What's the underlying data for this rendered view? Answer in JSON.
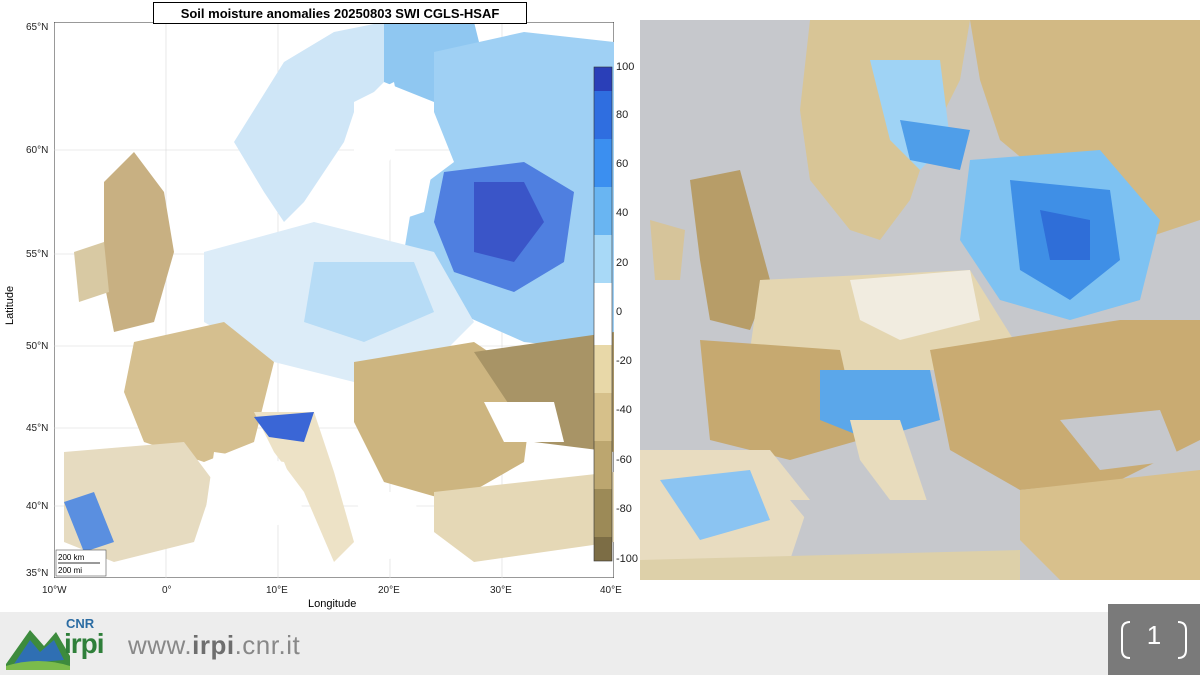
{
  "left_map": {
    "title": "Soil moisture anomalies 20250803 SWI CGLS-HSAF",
    "ylabel": "Latitude",
    "xlabel": "Longitude",
    "lat_ticks": [
      "65°N",
      "60°N",
      "55°N",
      "50°N",
      "45°N",
      "40°N",
      "35°N"
    ],
    "lon_ticks": [
      "10°W",
      "0°",
      "10°E",
      "20°E",
      "30°E",
      "40°E"
    ],
    "colorbar": {
      "ticks": [
        "100",
        "80",
        "60",
        "40",
        "20",
        "0",
        "-20",
        "-40",
        "-60",
        "-80",
        "-100"
      ],
      "colors_wet": [
        "#2a3fb8",
        "#2f6ee0",
        "#3b8ff0",
        "#69b5f2",
        "#a8d9f7"
      ],
      "colors_dry": [
        "#e8d8a8",
        "#d6c08a",
        "#bca66f",
        "#9c8a57",
        "#7c6d45"
      ]
    },
    "scale_km": "200 km",
    "scale_mi": "200 mi"
  },
  "footer": {
    "logo_text": "CNR",
    "logo_sub": "irpi",
    "url_prefix": "www.",
    "url_bold": "irpi",
    "url_suffix": ".cnr.it",
    "page_number": "1"
  },
  "colors": {
    "sea_right": "#c6c8cc",
    "land_dry": "#c9ad76",
    "land_wet": "#3f8fe6",
    "footer_bg": "#ededed",
    "page_box": "#7a7a7a"
  }
}
